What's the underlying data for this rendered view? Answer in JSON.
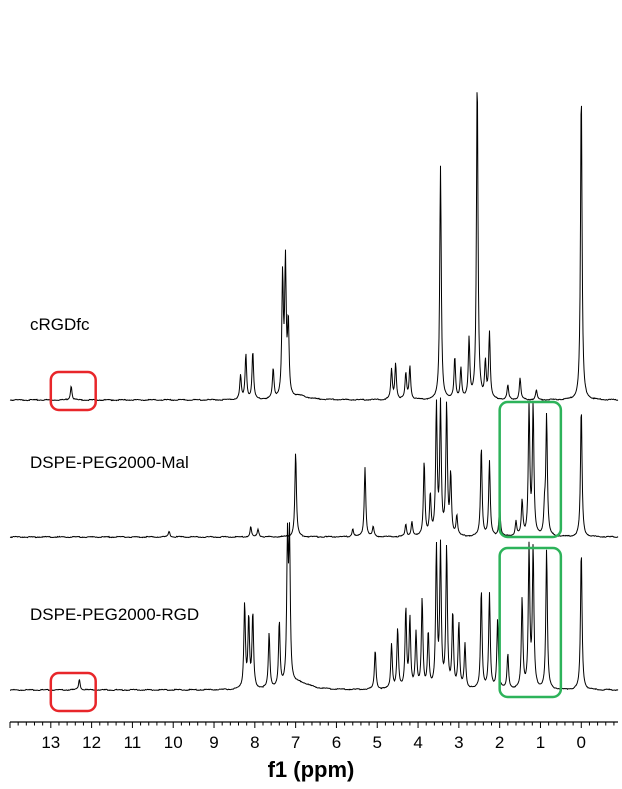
{
  "chart_data": {
    "type": "line",
    "title": "",
    "xlabel": "f1 (ppm)",
    "ylabel": "",
    "xlim": [
      14.0,
      -0.9
    ],
    "x_reversed": true,
    "x_ticks": [
      13,
      12,
      11,
      10,
      9,
      8,
      7,
      6,
      5,
      4,
      3,
      2,
      1,
      0
    ],
    "grid": false,
    "legend": "none",
    "series": [
      {
        "name": "cRGDfc",
        "color": "#000000",
        "peaks": [
          {
            "x": 12.5,
            "y": 0.12
          },
          {
            "x": 8.35,
            "y": 0.2
          },
          {
            "x": 8.22,
            "y": 0.38
          },
          {
            "x": 8.05,
            "y": 0.4
          },
          {
            "x": 7.55,
            "y": 0.25
          },
          {
            "x": 7.32,
            "y": 1.0
          },
          {
            "x": 7.25,
            "y": 1.1
          },
          {
            "x": 7.18,
            "y": 0.6
          },
          {
            "x": 4.65,
            "y": 0.25
          },
          {
            "x": 4.55,
            "y": 0.3
          },
          {
            "x": 4.3,
            "y": 0.22
          },
          {
            "x": 4.2,
            "y": 0.28
          },
          {
            "x": 3.45,
            "y": 1.95
          },
          {
            "x": 3.1,
            "y": 0.35
          },
          {
            "x": 2.95,
            "y": 0.25
          },
          {
            "x": 2.75,
            "y": 0.5
          },
          {
            "x": 2.55,
            "y": 2.7
          },
          {
            "x": 2.35,
            "y": 0.3
          },
          {
            "x": 2.25,
            "y": 0.55
          },
          {
            "x": 1.8,
            "y": 0.12
          },
          {
            "x": 1.5,
            "y": 0.18
          },
          {
            "x": 1.1,
            "y": 0.08
          },
          {
            "x": 0.0,
            "y": 2.6
          }
        ],
        "humps": [
          {
            "x": 6.9,
            "y": 0.03,
            "w": 0.25
          }
        ]
      },
      {
        "name": "DSPE-PEG2000-Mal",
        "color": "#000000",
        "peaks": [
          {
            "x": 10.1,
            "y": 0.06
          },
          {
            "x": 8.1,
            "y": 0.1
          },
          {
            "x": 7.92,
            "y": 0.08
          },
          {
            "x": 7.0,
            "y": 0.85
          },
          {
            "x": 5.6,
            "y": 0.08
          },
          {
            "x": 5.3,
            "y": 0.7
          },
          {
            "x": 5.1,
            "y": 0.1
          },
          {
            "x": 4.3,
            "y": 0.12
          },
          {
            "x": 4.15,
            "y": 0.15
          },
          {
            "x": 3.85,
            "y": 0.75
          },
          {
            "x": 3.7,
            "y": 0.4
          },
          {
            "x": 3.55,
            "y": 1.3
          },
          {
            "x": 3.45,
            "y": 1.3
          },
          {
            "x": 3.3,
            "y": 1.3
          },
          {
            "x": 3.2,
            "y": 0.6
          },
          {
            "x": 3.05,
            "y": 0.2
          },
          {
            "x": 2.45,
            "y": 0.9
          },
          {
            "x": 2.25,
            "y": 0.75
          },
          {
            "x": 2.0,
            "y": 0.3
          },
          {
            "x": 1.6,
            "y": 0.15
          },
          {
            "x": 1.45,
            "y": 0.35
          },
          {
            "x": 1.28,
            "y": 1.3
          },
          {
            "x": 1.18,
            "y": 1.3
          },
          {
            "x": 0.9,
            "y": 0.25
          },
          {
            "x": 0.85,
            "y": 1.2
          },
          {
            "x": 0.0,
            "y": 1.3
          }
        ],
        "humps": []
      },
      {
        "name": "DSPE-PEG2000-RGD",
        "color": "#000000",
        "peaks": [
          {
            "x": 12.3,
            "y": 0.11
          },
          {
            "x": 8.25,
            "y": 0.85
          },
          {
            "x": 8.15,
            "y": 0.7
          },
          {
            "x": 8.05,
            "y": 0.75
          },
          {
            "x": 7.65,
            "y": 0.55
          },
          {
            "x": 7.4,
            "y": 0.65
          },
          {
            "x": 7.2,
            "y": 1.4
          },
          {
            "x": 7.15,
            "y": 1.4
          },
          {
            "x": 5.05,
            "y": 0.4
          },
          {
            "x": 4.65,
            "y": 0.45
          },
          {
            "x": 4.5,
            "y": 0.6
          },
          {
            "x": 4.3,
            "y": 0.8
          },
          {
            "x": 4.2,
            "y": 0.7
          },
          {
            "x": 4.05,
            "y": 0.55
          },
          {
            "x": 3.9,
            "y": 0.9
          },
          {
            "x": 3.75,
            "y": 0.55
          },
          {
            "x": 3.55,
            "y": 1.4
          },
          {
            "x": 3.45,
            "y": 1.4
          },
          {
            "x": 3.3,
            "y": 1.4
          },
          {
            "x": 3.15,
            "y": 0.75
          },
          {
            "x": 3.0,
            "y": 0.65
          },
          {
            "x": 2.85,
            "y": 0.45
          },
          {
            "x": 2.45,
            "y": 1.0
          },
          {
            "x": 2.25,
            "y": 0.95
          },
          {
            "x": 2.05,
            "y": 0.7
          },
          {
            "x": 1.8,
            "y": 0.35
          },
          {
            "x": 1.45,
            "y": 0.9
          },
          {
            "x": 1.28,
            "y": 1.4
          },
          {
            "x": 1.18,
            "y": 1.4
          },
          {
            "x": 0.85,
            "y": 1.4
          },
          {
            "x": 0.0,
            "y": 1.4
          }
        ],
        "humps": [
          {
            "x": 6.9,
            "y": 0.07,
            "w": 0.3
          }
        ]
      }
    ],
    "annotations": [
      {
        "type": "box",
        "color": "#e8262a",
        "series": "cRGDfc",
        "x_from": 13.0,
        "x_to": 11.9
      },
      {
        "type": "box",
        "color": "#e8262a",
        "series": "DSPE-PEG2000-RGD",
        "x_from": 13.0,
        "x_to": 11.9
      },
      {
        "type": "box",
        "color": "#2db35a",
        "series": "DSPE-PEG2000-Mal",
        "x_from": 2.0,
        "x_to": 0.5
      },
      {
        "type": "box",
        "color": "#2db35a",
        "series": "DSPE-PEG2000-RGD",
        "x_from": 2.0,
        "x_to": 0.5
      }
    ]
  }
}
